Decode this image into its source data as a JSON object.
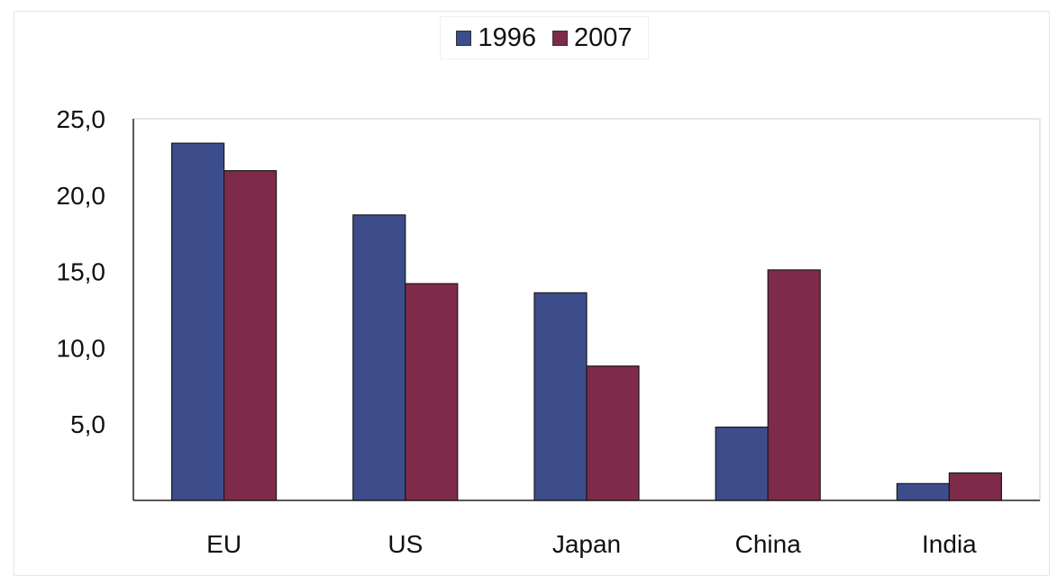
{
  "chart_data": {
    "type": "bar",
    "categories": [
      "EU",
      "US",
      "Japan",
      "China",
      "India"
    ],
    "series": [
      {
        "name": "1996",
        "values": [
          23.4,
          18.7,
          13.6,
          4.8,
          1.1
        ],
        "color": "#3d4d8c"
      },
      {
        "name": "2007",
        "values": [
          21.6,
          14.2,
          8.8,
          15.1,
          1.8
        ],
        "color": "#7e2a4b"
      }
    ],
    "y_ticks": [
      "25,0",
      "20,0",
      "15,0",
      "10,0",
      "5,0"
    ],
    "y_tick_values": [
      25,
      20,
      15,
      10,
      5
    ],
    "ylim": [
      0,
      25
    ],
    "title": "",
    "xlabel": "",
    "ylabel": "",
    "legend_position": "top",
    "grid": false
  }
}
